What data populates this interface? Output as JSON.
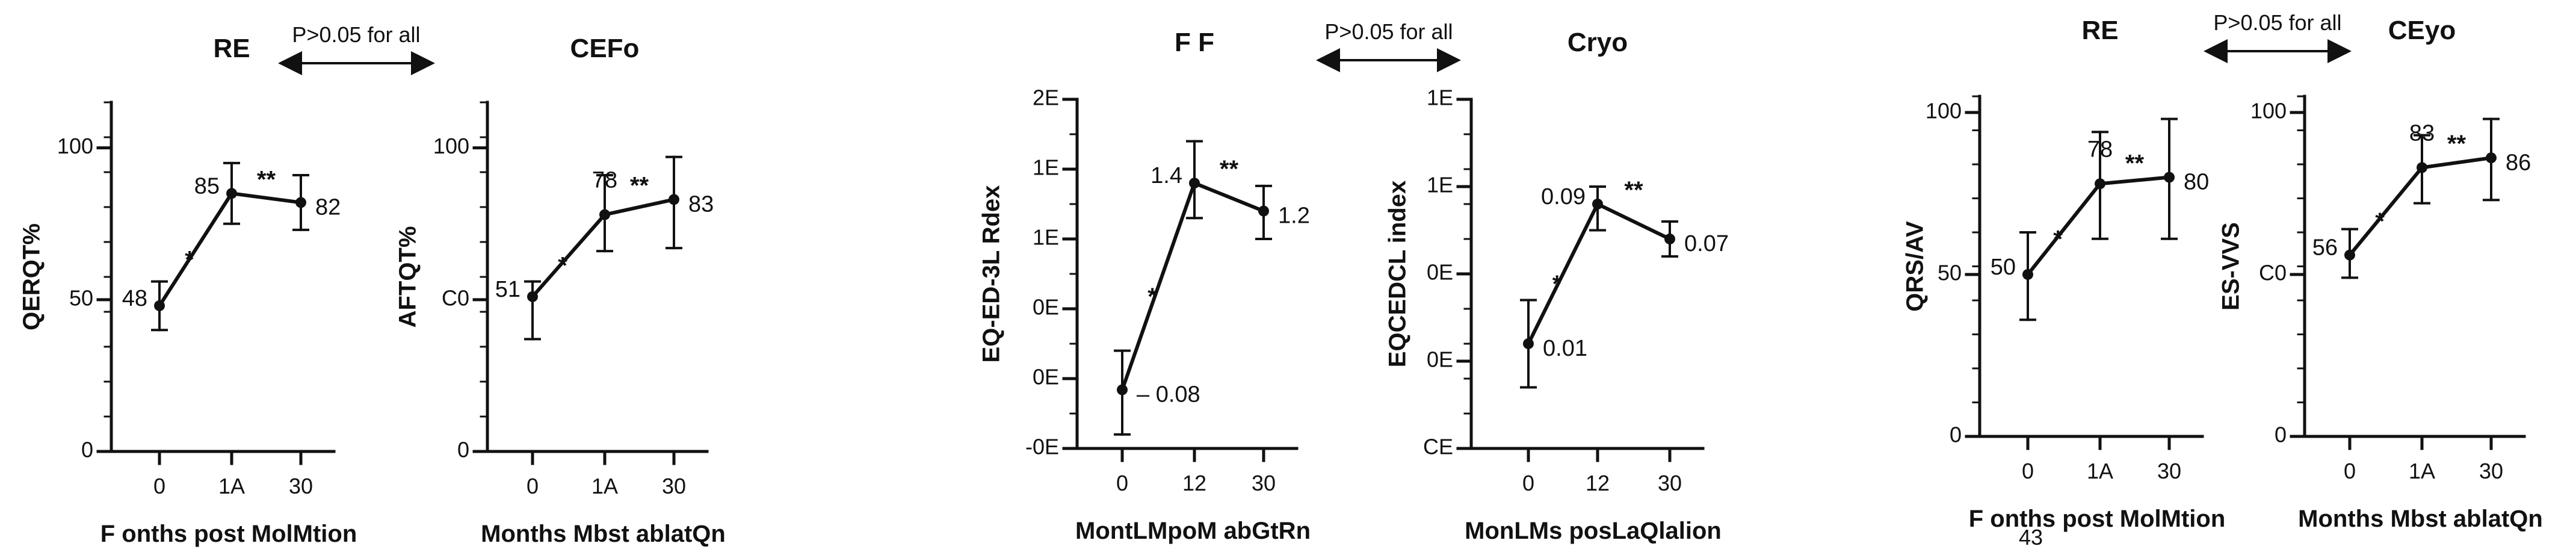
{
  "figure": {
    "comparisons": [
      {
        "text": "P>0.05 for all"
      },
      {
        "text": "P>0.05 for all"
      },
      {
        "text": "P>0.05 for all"
      }
    ],
    "extra_texts": [
      {
        "text": "43"
      }
    ]
  },
  "chart_data": [
    {
      "type": "line",
      "title": "RE",
      "xlabel": "F onths post MolMtion",
      "ylabel": "QERQT%",
      "categories": [
        "0",
        "1A",
        "30"
      ],
      "yticks": [
        "0",
        "50",
        "100"
      ],
      "ylim": [
        0,
        115
      ],
      "series": [
        {
          "values": [
            48,
            85,
            82
          ],
          "err_low": [
            40,
            75,
            73
          ],
          "err_high": [
            56,
            95,
            91
          ]
        }
      ],
      "point_labels": [
        "48",
        "85",
        "82"
      ],
      "label_sides": [
        "left",
        "left",
        "right"
      ],
      "annotations": [
        "*",
        "**"
      ],
      "grid": false
    },
    {
      "type": "line",
      "title": "CEFo",
      "xlabel": "Months Mbst ablatQn",
      "ylabel": "AFTQT%",
      "categories": [
        "0",
        "1A",
        "30"
      ],
      "yticks": [
        "0",
        "C0",
        "100"
      ],
      "ylim": [
        0,
        115
      ],
      "series": [
        {
          "values": [
            51,
            78,
            83
          ],
          "err_low": [
            37,
            66,
            67
          ],
          "err_high": [
            56,
            91,
            97
          ]
        }
      ],
      "point_labels": [
        "51",
        "78",
        "83"
      ],
      "label_sides": [
        "left",
        "above",
        "right"
      ],
      "annotations": [
        "*",
        "**"
      ],
      "grid": false
    },
    {
      "type": "line",
      "title": "F F",
      "xlabel": "MontLMpoM abGtRn",
      "ylabel": "EQ-ED-3L Rdex",
      "categories": [
        "0",
        "12",
        "30"
      ],
      "yticks": [
        "-0E",
        "0E",
        "0E",
        "1E",
        "1E",
        "2E"
      ],
      "ylim": [
        -0.5,
        2.0
      ],
      "series": [
        {
          "values": [
            -0.08,
            1.4,
            1.2
          ],
          "err_low": [
            -0.4,
            1.15,
            1.0
          ],
          "err_high": [
            0.2,
            1.7,
            1.38
          ]
        }
      ],
      "point_labels": [
        "– 0.08",
        "1.4",
        "1.2"
      ],
      "label_sides": [
        "right",
        "left",
        "right"
      ],
      "annotations": [
        "*",
        "**"
      ],
      "grid": false
    },
    {
      "type": "line",
      "title": "Cryo",
      "xlabel": "MonLMs posLaQlalion",
      "ylabel": "EQCEDCL index",
      "categories": [
        "0",
        "12",
        "30"
      ],
      "yticks": [
        "CE",
        "0E",
        "0E",
        "1E",
        "1E"
      ],
      "ylim": [
        -0.05,
        0.15
      ],
      "series": [
        {
          "values": [
            0.01,
            0.09,
            0.07
          ],
          "err_low": [
            -0.015,
            0.075,
            0.06
          ],
          "err_high": [
            0.035,
            0.1,
            0.08
          ]
        }
      ],
      "point_labels": [
        "0.01",
        "0.09",
        "0.07"
      ],
      "label_sides": [
        "right",
        "left",
        "right"
      ],
      "annotations": [
        "*",
        "**"
      ],
      "grid": false
    },
    {
      "type": "line",
      "title": "RE",
      "xlabel": "F onths post MolMtion",
      "ylabel": "QRS/AV",
      "categories": [
        "0",
        "1A",
        "30"
      ],
      "yticks": [
        "0",
        "50",
        "100"
      ],
      "ylim": [
        0,
        105
      ],
      "series": [
        {
          "values": [
            50,
            78,
            80
          ],
          "err_low": [
            36,
            61,
            61
          ],
          "err_high": [
            63,
            94,
            98
          ]
        }
      ],
      "point_labels": [
        "50",
        "78",
        "80"
      ],
      "label_sides": [
        "left",
        "above",
        "right"
      ],
      "annotations": [
        "*",
        "**"
      ],
      "grid": false
    },
    {
      "type": "line",
      "title": "CEyo",
      "xlabel": "Months Mbst ablatQn",
      "ylabel": "ES-VVS",
      "categories": [
        "0",
        "1A",
        "30"
      ],
      "yticks": [
        "0",
        "C0",
        "100"
      ],
      "ylim": [
        0,
        105
      ],
      "series": [
        {
          "values": [
            56,
            83,
            86
          ],
          "err_low": [
            49,
            72,
            73
          ],
          "err_high": [
            64,
            93,
            98
          ]
        }
      ],
      "point_labels": [
        "56",
        "83",
        "86"
      ],
      "label_sides": [
        "left",
        "above",
        "right"
      ],
      "annotations": [
        "*",
        "**"
      ],
      "grid": false
    }
  ]
}
